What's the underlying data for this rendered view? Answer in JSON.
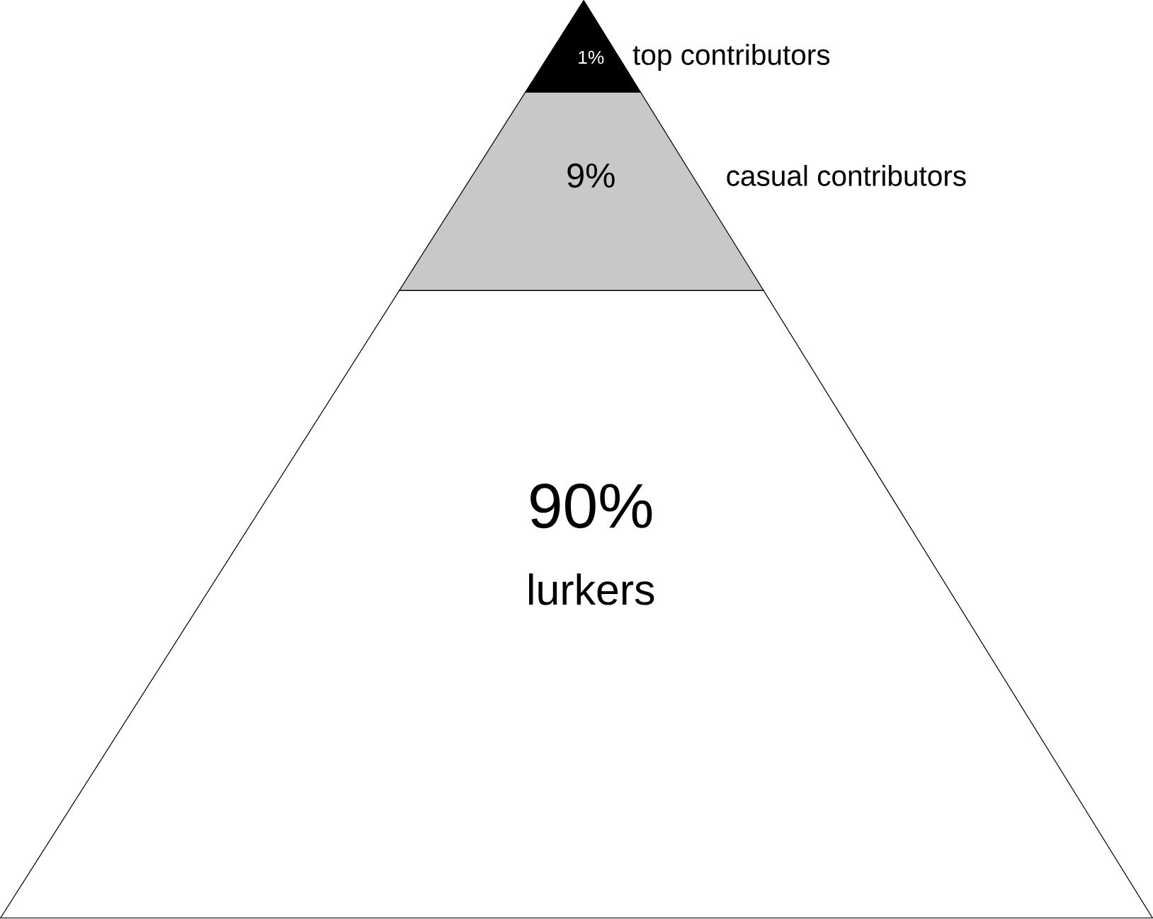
{
  "chart_data": {
    "type": "other",
    "categories": [
      "top contributors",
      "casual contributors",
      "lurkers"
    ],
    "values": [
      1,
      9,
      90
    ],
    "value_labels": [
      "1%",
      "9%",
      "90%"
    ],
    "colors": [
      "#000000",
      "#c8c8c8",
      "#ffffff"
    ]
  }
}
